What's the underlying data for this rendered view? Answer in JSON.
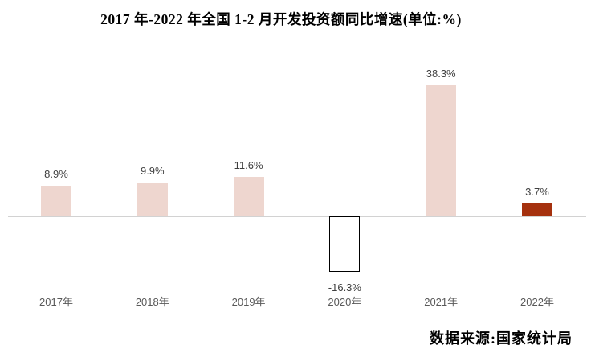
{
  "chart": {
    "title": "2017 年-2022 年全国 1-2 月开发投资额同比增速(单位:%)",
    "source": "数据来源:国家统计局"
  },
  "chart_data": {
    "type": "bar",
    "title": "2017 年-2022 年全国 1-2 月开发投资额同比增速(单位:%)",
    "xlabel": "",
    "ylabel": "",
    "unit": "%",
    "ylim": [
      -20,
      45
    ],
    "grid": false,
    "legend": false,
    "y_axis_visible": false,
    "categories": [
      "2017年",
      "2018年",
      "2019年",
      "2020年",
      "2021年",
      "2022年"
    ],
    "values": [
      8.9,
      9.9,
      11.6,
      -16.3,
      38.3,
      3.7
    ],
    "bars": [
      {
        "category": "2017年",
        "value": 8.9,
        "value_label": "8.9%",
        "fill": "#eed6cf",
        "border": "none"
      },
      {
        "category": "2018年",
        "value": 9.9,
        "value_label": "9.9%",
        "fill": "#eed6cf",
        "border": "none"
      },
      {
        "category": "2019年",
        "value": 11.6,
        "value_label": "11.6%",
        "fill": "#eed6cf",
        "border": "none"
      },
      {
        "category": "2020年",
        "value": -16.3,
        "value_label": "-16.3%",
        "fill": "#ffffff",
        "border": "#000000"
      },
      {
        "category": "2021年",
        "value": 38.3,
        "value_label": "38.3%",
        "fill": "#eed6cf",
        "border": "none"
      },
      {
        "category": "2022年",
        "value": 3.7,
        "value_label": "3.7%",
        "fill": "#a5310e",
        "border": "none"
      }
    ],
    "colors": {
      "bar_default": "#eed6cf",
      "bar_highlight": "#a5310e",
      "bar_negative_fill": "#ffffff",
      "bar_negative_border": "#000000",
      "axis_line": "#d2d2d2",
      "value_label": "#3f3f3f",
      "category_label": "#595959"
    },
    "source": "数据来源:国家统计局"
  }
}
